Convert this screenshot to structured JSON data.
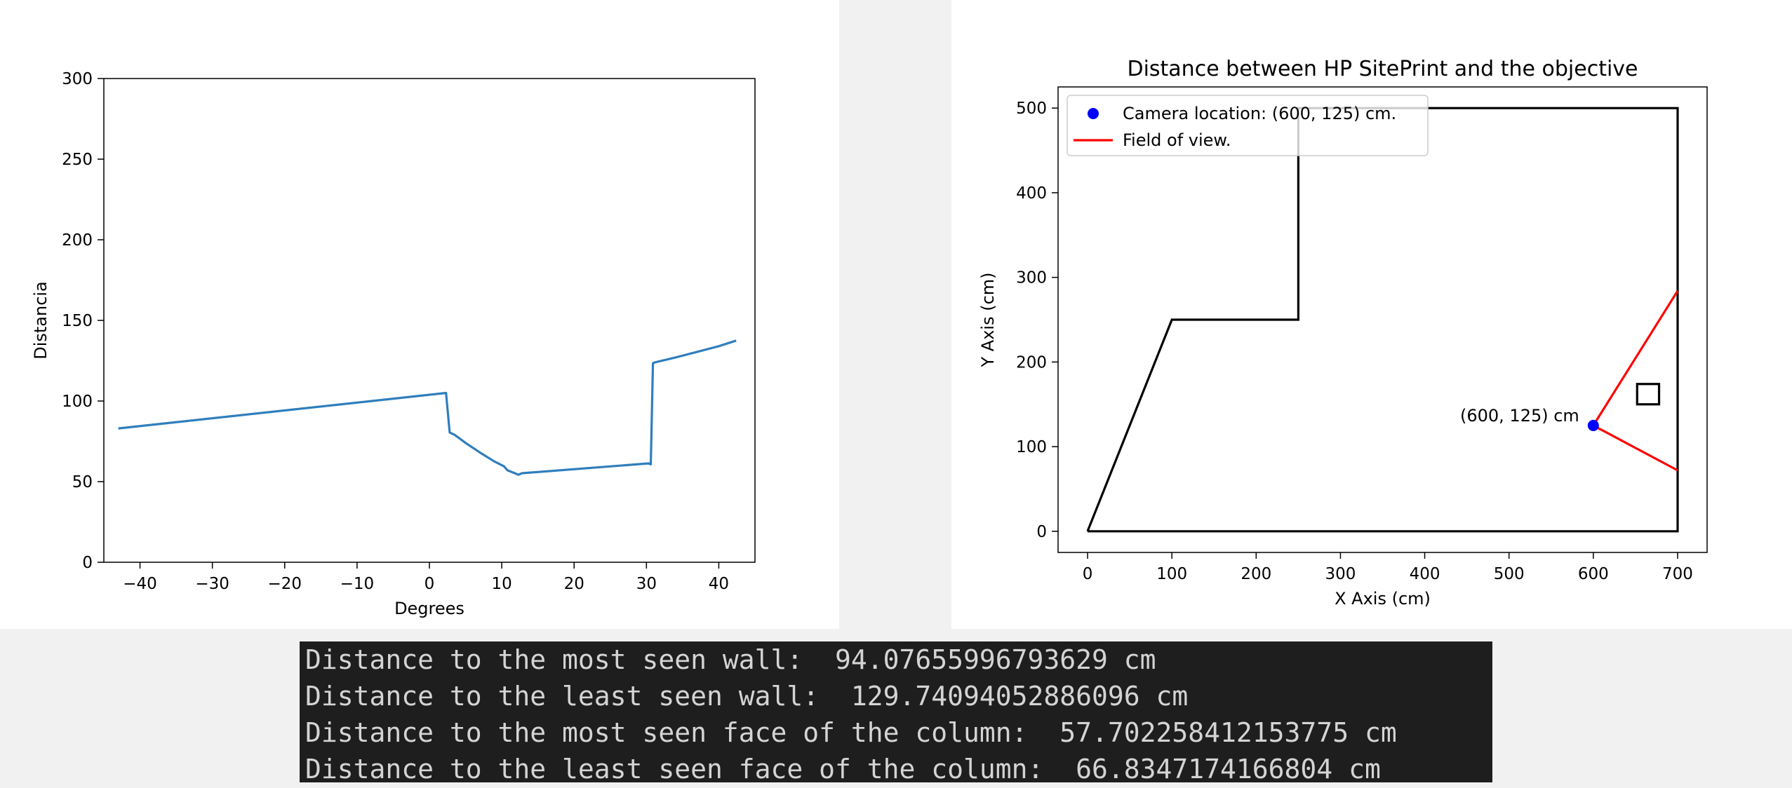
{
  "chart_data": [
    {
      "type": "line",
      "title": "",
      "xlabel": "Degrees",
      "ylabel": "Distancia",
      "xlim": [
        -45,
        45
      ],
      "ylim": [
        0,
        300
      ],
      "xticks": [
        -40,
        -30,
        -20,
        -10,
        0,
        10,
        20,
        30,
        40
      ],
      "yticks": [
        0,
        50,
        100,
        150,
        200,
        250,
        300
      ],
      "xtick_labels": [
        "−40",
        "−30",
        "−20",
        "−10",
        "0",
        "10",
        "20",
        "30",
        "40"
      ],
      "ytick_labels": [
        "0",
        "50",
        "100",
        "150",
        "200",
        "250",
        "300"
      ],
      "grid": false,
      "series_color": "#2f7ebc",
      "series": [
        {
          "x": [
            -43.0,
            2.3,
            2.8,
            3.5,
            5.0,
            7.0,
            9.0,
            10.3,
            10.8,
            11.8,
            12.3,
            12.8,
            30.3,
            30.6,
            30.9,
            31.2,
            34.0,
            37.0,
            40.0,
            42.4
          ],
          "y": [
            83.0,
            105.0,
            80.5,
            79.0,
            74.0,
            68.0,
            62.5,
            59.5,
            57.0,
            55.2,
            54.3,
            55.2,
            61.3,
            60.7,
            123.5,
            124.0,
            127.0,
            130.5,
            134.0,
            137.5
          ]
        }
      ]
    },
    {
      "type": "line",
      "title": "Distance between HP SitePrint and the objective",
      "xlabel": "X Axis (cm)",
      "ylabel": "Y Axis (cm)",
      "xlim": [
        -35,
        735
      ],
      "ylim": [
        -25,
        525
      ],
      "xticks": [
        0,
        100,
        200,
        300,
        400,
        500,
        600,
        700
      ],
      "yticks": [
        0,
        100,
        200,
        300,
        400,
        500
      ],
      "xtick_labels": [
        "0",
        "100",
        "200",
        "300",
        "400",
        "500",
        "600",
        "700"
      ],
      "ytick_labels": [
        "0",
        "100",
        "200",
        "300",
        "400",
        "500"
      ],
      "grid": false,
      "legend_position": "upper-left",
      "legend": [
        {
          "label": "Camera location: (600, 125) cm.",
          "marker": "dot",
          "color": "#0000ff"
        },
        {
          "label": "Field of view.",
          "marker": "line",
          "color": "#ff0000"
        }
      ],
      "room_outline": {
        "color": "#000000",
        "x": [
          0,
          700,
          700,
          250,
          250,
          100,
          0
        ],
        "y": [
          0,
          0,
          500,
          500,
          250,
          250,
          0
        ]
      },
      "column": {
        "color": "#000000",
        "x": [
          652,
          678
        ],
        "y": [
          150,
          174
        ]
      },
      "field_of_view": {
        "color": "#ff0000",
        "segments": [
          {
            "x": [
              600,
              700
            ],
            "y": [
              125,
              284
            ]
          },
          {
            "x": [
              600,
              700
            ],
            "y": [
              125,
              72
            ]
          }
        ]
      },
      "camera_point": {
        "x": 600,
        "y": 125,
        "color": "#0000ff"
      },
      "annotation": {
        "text": "(600, 125) cm",
        "x": 600,
        "y": 125
      }
    }
  ],
  "console": {
    "background": "#1e1e1e",
    "text_color": "#d4d4d4",
    "lines": [
      "Distance to the most seen wall:  94.07655996793629 cm",
      "Distance to the least seen wall:  129.74094052886096 cm",
      "Distance to the most seen face of the column:  57.702258412153775 cm",
      "Distance to the least seen face of the column:  66.8347174166804 cm"
    ]
  }
}
